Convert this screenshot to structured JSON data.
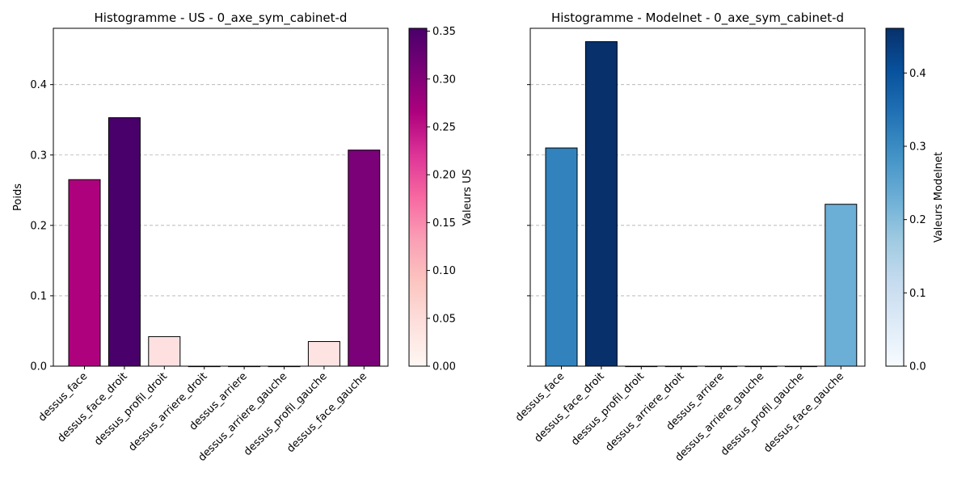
{
  "chart_data": [
    {
      "type": "bar",
      "title": "Histogramme - US - 0_axe_sym_cabinet-d",
      "xlabel": "",
      "ylabel": "Poids",
      "ylim": [
        0,
        0.48
      ],
      "yticks": [
        "0.0",
        "0.1",
        "0.2",
        "0.3",
        "0.4"
      ],
      "grid": "y dashed",
      "categories": [
        "dessus_face",
        "dessus_face_droit",
        "dessus_profil_droit",
        "dessus_arriere_droit",
        "dessus_arriere",
        "dessus_arriere_gauche",
        "dessus_profil_gauche",
        "dessus_face_gauche"
      ],
      "values": [
        0.265,
        0.353,
        0.042,
        0.0,
        0.0,
        0.0,
        0.035,
        0.307
      ],
      "colormap": "RdPu",
      "colors": [
        "#ae017e",
        "#49006a",
        "#fee0e0",
        "#fff7f3",
        "#fff7f3",
        "#fff7f3",
        "#fee3e3",
        "#7a0177"
      ],
      "colorbar": {
        "label": "Valeurs US",
        "range": [
          0,
          0.353
        ],
        "ticks": [
          "0.00",
          "0.05",
          "0.10",
          "0.15",
          "0.20",
          "0.25",
          "0.30",
          "0.35"
        ],
        "stops": [
          "#fff7f3",
          "#fde0dd",
          "#fcc5c0",
          "#fa9fb5",
          "#f768a1",
          "#dd3497",
          "#ae017e",
          "#7a0177",
          "#49006a"
        ]
      }
    },
    {
      "type": "bar",
      "title": "Histogramme - Modelnet - 0_axe_sym_cabinet-d",
      "xlabel": "",
      "ylabel": "",
      "ylim": [
        0,
        0.48
      ],
      "grid": "y dashed",
      "categories": [
        "dessus_face",
        "dessus_face_droit",
        "dessus_profil_droit",
        "dessus_arriere_droit",
        "dessus_arriere",
        "dessus_arriere_gauche",
        "dessus_profil_gauche",
        "dessus_face_gauche"
      ],
      "values": [
        0.31,
        0.461,
        0.0,
        0.0,
        0.0,
        0.0,
        0.0,
        0.23
      ],
      "colormap": "Blues",
      "colors": [
        "#3182bd",
        "#08306b",
        "#f7fbff",
        "#f7fbff",
        "#f7fbff",
        "#f7fbff",
        "#f7fbff",
        "#6baed6"
      ],
      "colorbar": {
        "label": "Valeurs Modelnet",
        "range": [
          0,
          0.461
        ],
        "ticks": [
          "0.0",
          "0.1",
          "0.2",
          "0.3",
          "0.4"
        ],
        "stops": [
          "#f7fbff",
          "#deebf7",
          "#c6dbef",
          "#9ecae1",
          "#6baed6",
          "#4292c6",
          "#2171b5",
          "#08519c",
          "#08306b"
        ]
      }
    }
  ]
}
